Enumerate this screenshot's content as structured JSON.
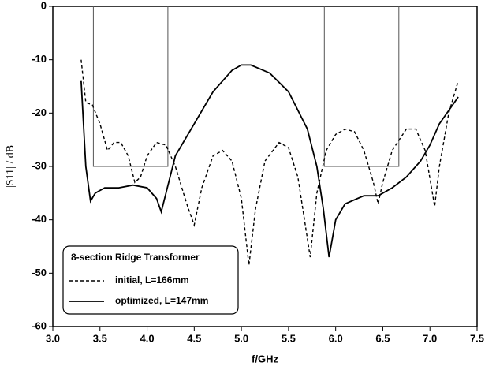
{
  "chart_data": {
    "type": "line",
    "xlabel": "f/GHz",
    "ylabel": "|S11| / dB",
    "legend_title": "8-section Ridge Transformer",
    "series": [
      {
        "name": "initial, L=166mm",
        "color": "#000000",
        "dash": true,
        "x": [
          3.3,
          3.35,
          3.42,
          3.5,
          3.58,
          3.65,
          3.72,
          3.8,
          3.87,
          3.93,
          4.0,
          4.1,
          4.2,
          4.3,
          4.42,
          4.5,
          4.58,
          4.7,
          4.8,
          4.9,
          5.0,
          5.08,
          5.15,
          5.25,
          5.4,
          5.5,
          5.6,
          5.73,
          5.8,
          5.9,
          6.0,
          6.1,
          6.2,
          6.3,
          6.4,
          6.45,
          6.5,
          6.6,
          6.75,
          6.85,
          6.95,
          7.05,
          7.1,
          7.2,
          7.3
        ],
        "values": [
          -10,
          -18,
          -18.5,
          -22,
          -27,
          -25.5,
          -25.5,
          -28,
          -33,
          -32,
          -28,
          -25.5,
          -26,
          -30,
          -37,
          -41,
          -34,
          -28,
          -27,
          -29,
          -36,
          -48.5,
          -38,
          -29,
          -25.5,
          -26.5,
          -32,
          -47,
          -35,
          -27,
          -24,
          -23,
          -23.5,
          -27,
          -33,
          -37,
          -33,
          -27,
          -23,
          -23,
          -27,
          -37.5,
          -30,
          -20,
          -14
        ]
      },
      {
        "name": "optimized, L=147mm",
        "color": "#000000",
        "dash": false,
        "x": [
          3.3,
          3.35,
          3.4,
          3.45,
          3.55,
          3.7,
          3.85,
          4.0,
          4.1,
          4.15,
          4.2,
          4.3,
          4.5,
          4.7,
          4.9,
          5.0,
          5.1,
          5.3,
          5.5,
          5.7,
          5.8,
          5.87,
          5.93,
          6.0,
          6.1,
          6.3,
          6.45,
          6.6,
          6.75,
          6.9,
          7.0,
          7.1,
          7.3
        ],
        "values": [
          -14,
          -30,
          -36.5,
          -35,
          -34,
          -34,
          -33.5,
          -34,
          -36,
          -38.5,
          -35,
          -28,
          -22,
          -16,
          -12,
          -11,
          -11,
          -12.5,
          -16,
          -23,
          -30,
          -38,
          -47,
          -40,
          -37,
          -35.5,
          -35.5,
          -34,
          -32,
          -29,
          -26,
          -22,
          -17
        ]
      }
    ],
    "mask": {
      "color": "#555555",
      "x": [
        3.43,
        3.43,
        4.22,
        4.22,
        null,
        5.88,
        5.88,
        6.67,
        6.67
      ],
      "values": [
        0,
        -30,
        -30,
        0,
        null,
        0,
        -30,
        -30,
        0
      ]
    },
    "xlim": [
      3.0,
      7.5
    ],
    "xticks": [
      {
        "value": 3,
        "label": "3.0"
      },
      3.5,
      {
        "value": 4,
        "label": "4.0"
      },
      4.5,
      {
        "value": 5,
        "label": "5.0"
      },
      5.5,
      {
        "value": 6,
        "label": "6.0"
      },
      6.5,
      {
        "value": 7,
        "label": "7.0"
      },
      7.5
    ],
    "ylim": [
      -60,
      0
    ],
    "yticks": [
      0,
      -10,
      -20,
      -30,
      -40,
      -50,
      -60
    ]
  }
}
